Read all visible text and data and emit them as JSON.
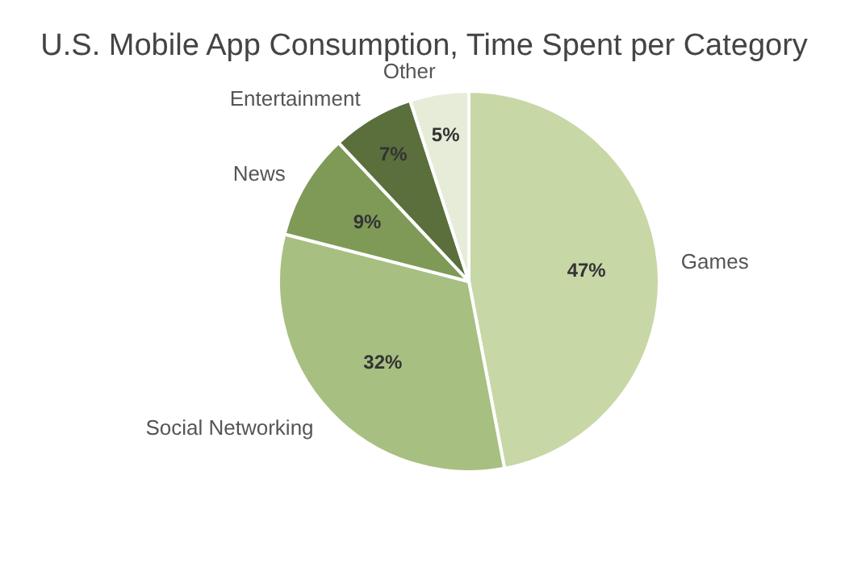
{
  "chart_data": {
    "type": "pie",
    "title": "U.S. Mobile App Consumption, Time Spent per Category",
    "categories": [
      "Games",
      "Social Networking",
      "News",
      "Entertainment",
      "Other"
    ],
    "values": [
      47,
      32,
      9,
      7,
      5
    ],
    "value_labels": [
      "47%",
      "32%",
      "9%",
      "7%",
      "5%"
    ],
    "colors": [
      "#c8d7a6",
      "#a8bf82",
      "#7f9a57",
      "#5b6f3c",
      "#e7ecd8"
    ]
  }
}
